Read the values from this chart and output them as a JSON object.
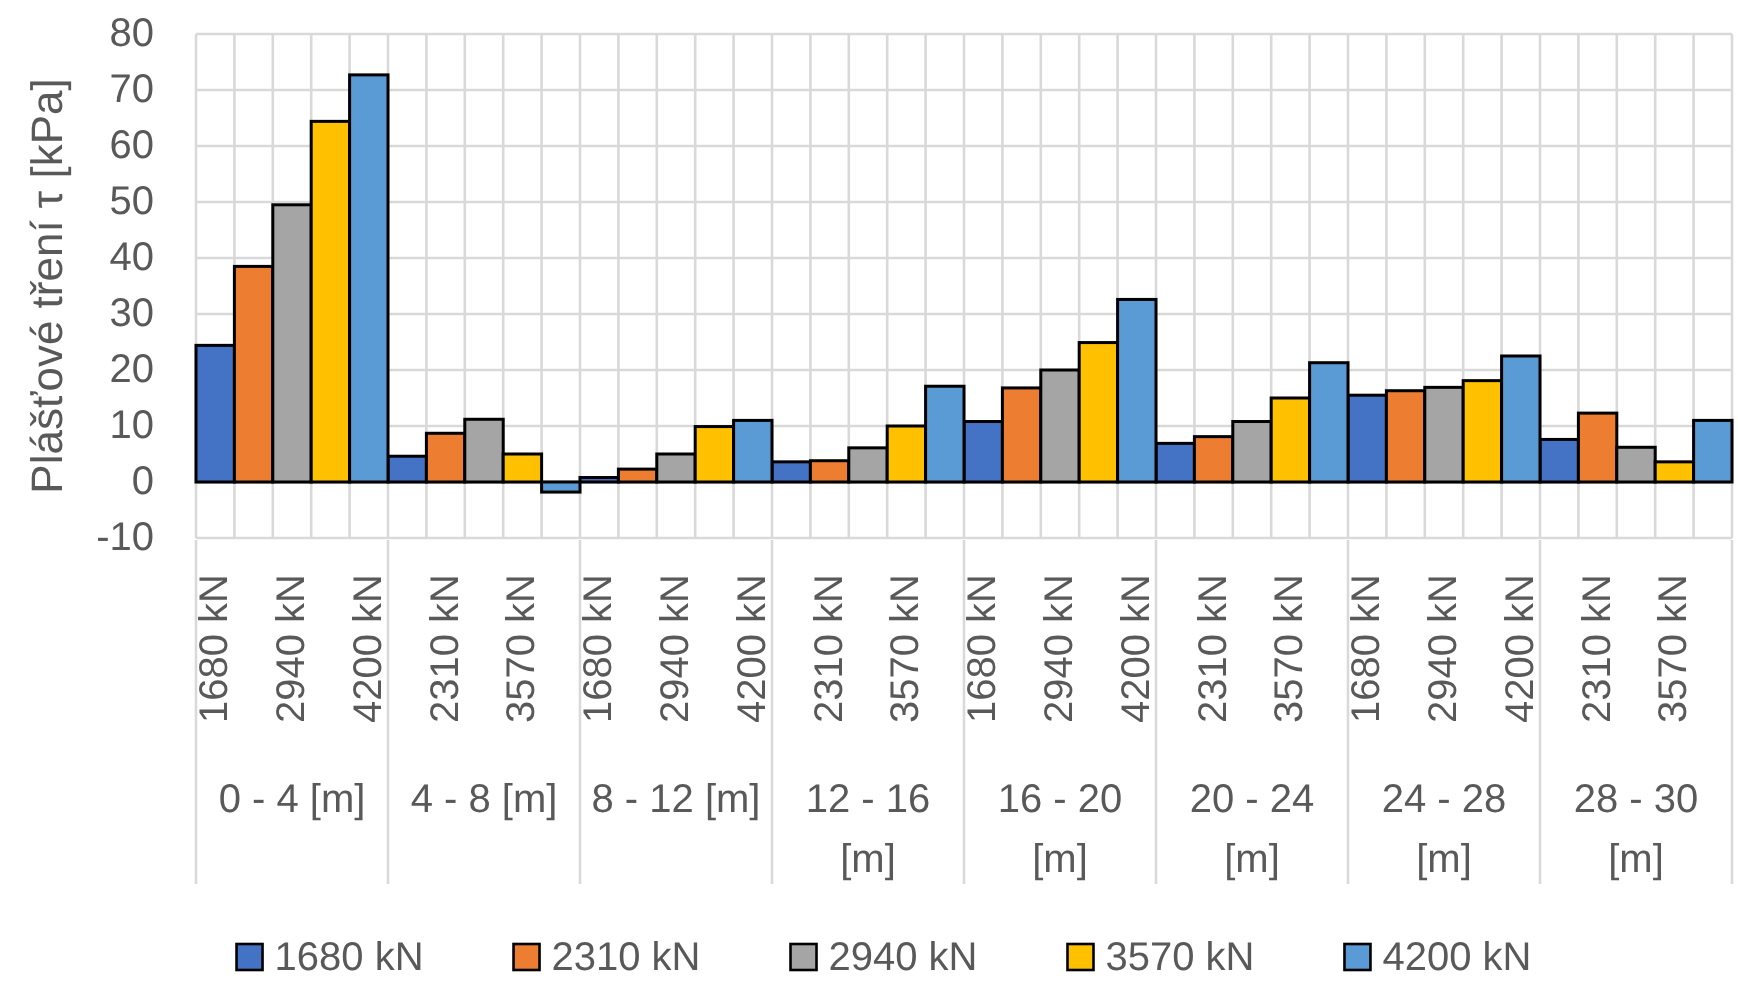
{
  "chart_data": {
    "type": "bar",
    "ylabel": "Plášťové tření τ [kPa]",
    "categories": [
      "0 - 4 [m]",
      "4 - 8 [m]",
      "8 - 12 [m]",
      "12 - 16 [m]",
      "16 - 20 [m]",
      "20 - 24 [m]",
      "24 - 28 [m]",
      "28 - 30 [m]"
    ],
    "series": [
      {
        "name": "1680 kN",
        "color": "#4472c4",
        "values": [
          24.4,
          4.6,
          0.8,
          3.6,
          10.8,
          6.9,
          15.5,
          7.6
        ]
      },
      {
        "name": "2310 kN",
        "color": "#ed7d31",
        "values": [
          38.5,
          8.7,
          2.3,
          3.8,
          16.8,
          8.1,
          16.3,
          12.3
        ]
      },
      {
        "name": "2940 kN",
        "color": "#a5a5a5",
        "values": [
          49.5,
          11.2,
          5.0,
          6.1,
          20.0,
          10.8,
          16.9,
          6.2
        ]
      },
      {
        "name": "3570 kN",
        "color": "#ffc000",
        "values": [
          64.4,
          5.0,
          9.9,
          10.0,
          24.9,
          15.0,
          18.1,
          3.6
        ]
      },
      {
        "name": "4200 kN",
        "color": "#5b9bd5",
        "values": [
          72.7,
          -1.8,
          11.0,
          17.1,
          32.6,
          21.3,
          22.5,
          11.0
        ]
      }
    ],
    "ylim": [
      -10,
      80
    ],
    "yticks": [
      -10,
      0,
      10,
      20,
      30,
      40,
      50,
      60,
      70,
      80
    ],
    "grid": true,
    "legend": "bottom"
  }
}
